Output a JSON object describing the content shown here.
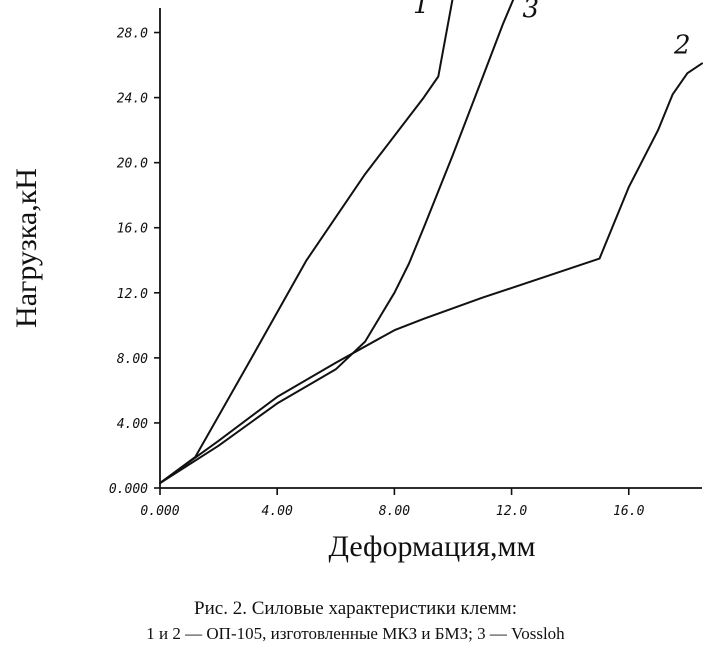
{
  "chart_data": {
    "type": "line",
    "ylabel": "Нагрузка,кН",
    "xlabel": "Деформация,мм",
    "xlim": [
      0,
      18.5
    ],
    "ylim": [
      0,
      30
    ],
    "x_ticks": [
      {
        "value": 0,
        "label": "0.000"
      },
      {
        "value": 4,
        "label": "4.00"
      },
      {
        "value": 8,
        "label": "8.00"
      },
      {
        "value": 12,
        "label": "12.0"
      },
      {
        "value": 16,
        "label": "16.0"
      }
    ],
    "y_ticks": [
      {
        "value": 0,
        "label": "0.000"
      },
      {
        "value": 4,
        "label": "4.00"
      },
      {
        "value": 8,
        "label": "8.00"
      },
      {
        "value": 12,
        "label": "12.0"
      },
      {
        "value": 16,
        "label": "16.0"
      },
      {
        "value": 20,
        "label": "20.0"
      },
      {
        "value": 24,
        "label": "24.0"
      },
      {
        "value": 28,
        "label": "28.0"
      }
    ],
    "grid": false,
    "series": [
      {
        "label": "1",
        "points": [
          [
            0,
            0.3
          ],
          [
            1.2,
            1.9
          ],
          [
            3.0,
            7.6
          ],
          [
            5.0,
            14.0
          ],
          [
            7.0,
            19.3
          ],
          [
            9.0,
            24.0
          ],
          [
            9.5,
            25.3
          ],
          [
            10.0,
            30.2
          ]
        ]
      },
      {
        "label": "2",
        "points": [
          [
            0,
            0.3
          ],
          [
            2.0,
            2.9
          ],
          [
            4.0,
            5.6
          ],
          [
            6.0,
            7.7
          ],
          [
            8.0,
            9.7
          ],
          [
            9.0,
            10.4
          ],
          [
            11.0,
            11.7
          ],
          [
            13.0,
            12.9
          ],
          [
            15.0,
            14.1
          ],
          [
            16.0,
            18.5
          ],
          [
            17.0,
            22.0
          ],
          [
            17.5,
            24.2
          ],
          [
            18.0,
            25.5
          ],
          [
            18.5,
            26.1
          ]
        ]
      },
      {
        "label": "3",
        "points": [
          [
            0,
            0.3
          ],
          [
            2.0,
            2.6
          ],
          [
            4.0,
            5.2
          ],
          [
            6.0,
            7.3
          ],
          [
            7.0,
            9.0
          ],
          [
            8.0,
            12.0
          ],
          [
            8.5,
            13.8
          ],
          [
            9.0,
            16.0
          ],
          [
            10.0,
            20.5
          ],
          [
            11.0,
            25.2
          ],
          [
            11.7,
            28.5
          ],
          [
            12.1,
            30.2
          ]
        ]
      }
    ]
  },
  "caption": {
    "line1": "Рис. 2. Силовые характеристики клемм:",
    "line2": "1 и 2 — ОП-105, изготовленные МКЗ и БМЗ; 3 — Vossloh"
  }
}
